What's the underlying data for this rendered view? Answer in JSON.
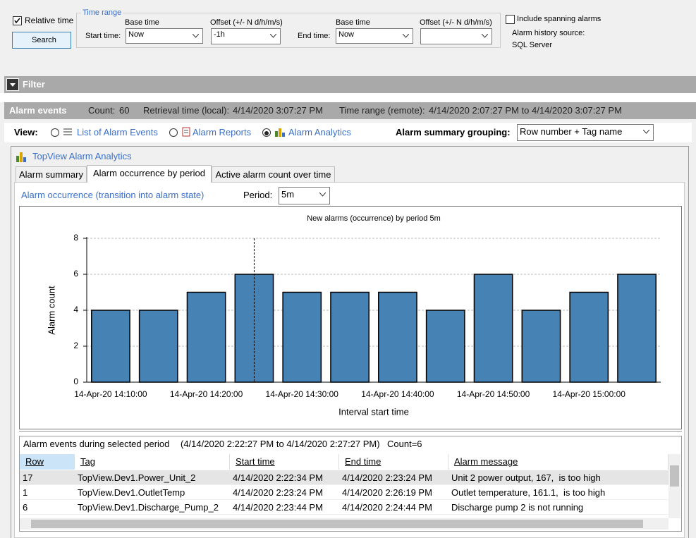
{
  "query": {
    "relative_time": "Relative time",
    "search": "Search",
    "time_range": "Time range",
    "start_time": "Start time:",
    "start_base_label": "Base time",
    "start_base_value": "Now",
    "start_offset_label": "Offset (+/- N d/h/m/s)",
    "start_offset_value": "-1h",
    "end_time": "End time:",
    "end_base_label": "Base time",
    "end_base_value": "Now",
    "end_offset_label": "Offset (+/- N d/h/m/s)",
    "include_spanning": "Include spanning alarms",
    "history_source_label": "Alarm history source:",
    "history_source": "SQL Server"
  },
  "filter": "Filter",
  "events_bar": {
    "title": "Alarm events",
    "count_label": "Count:",
    "count": "60",
    "retrieval_label": "Retrieval time (local):",
    "retrieval": "4/14/2020 3:07:27 PM",
    "range_label": "Time range (remote):",
    "range": "4/14/2020 2:07:27 PM to 4/14/2020 3:07:27 PM"
  },
  "view": {
    "label": "View:",
    "options": [
      "List of Alarm Events",
      "Alarm Reports",
      "Alarm Analytics"
    ],
    "grouping_label": "Alarm summary grouping:",
    "grouping": "Row number + Tag name"
  },
  "analytics": {
    "title": "TopView Alarm Analytics",
    "tabs": [
      "Alarm summary",
      "Alarm occurrence by period",
      "Active alarm count over time"
    ],
    "subtitle": "Alarm occurrence (transition into alarm state)",
    "period_label": "Period:",
    "period": "5m"
  },
  "chart_data": {
    "type": "bar",
    "title": "New alarms (occurrence) by period 5m",
    "x_label": "Interval start time",
    "y_label": "Alarm count",
    "categories": [
      "14-Apr-20 14:10:00",
      null,
      "14-Apr-20 14:20:00",
      null,
      "14-Apr-20 14:30:00",
      null,
      "14-Apr-20 14:40:00",
      null,
      "14-Apr-20 14:50:00",
      null,
      "14-Apr-20 15:00:00",
      null
    ],
    "values": [
      4,
      4,
      5,
      6,
      5,
      5,
      5,
      4,
      6,
      4,
      5,
      6
    ],
    "color": "#4682b4",
    "ylim": [
      0,
      8
    ],
    "yticks": [
      0,
      2,
      4,
      6,
      8
    ],
    "grid": true
  },
  "events": {
    "title": "Alarm events during selected period",
    "range": "(4/14/2020 2:22:27 PM to 4/14/2020 2:27:27 PM)",
    "count": "Count=6",
    "columns": [
      "Row",
      "Tag",
      "Start time",
      "End time",
      "Alarm message"
    ],
    "rows": [
      [
        "17",
        "TopView.Dev1.Power_Unit_2",
        "4/14/2020 2:22:34 PM",
        "4/14/2020 2:23:24 PM",
        "Unit 2 power output, 167,  is too high"
      ],
      [
        "1",
        "TopView.Dev1.OutletTemp",
        "4/14/2020 2:23:24 PM",
        "4/14/2020 2:26:19 PM",
        "Outlet temperature, 161.1,  is too high"
      ],
      [
        "6",
        "TopView.Dev1.Discharge_Pump_2",
        "4/14/2020 2:23:44 PM",
        "4/14/2020 2:24:44 PM",
        "Discharge pump 2 is not running"
      ]
    ]
  }
}
